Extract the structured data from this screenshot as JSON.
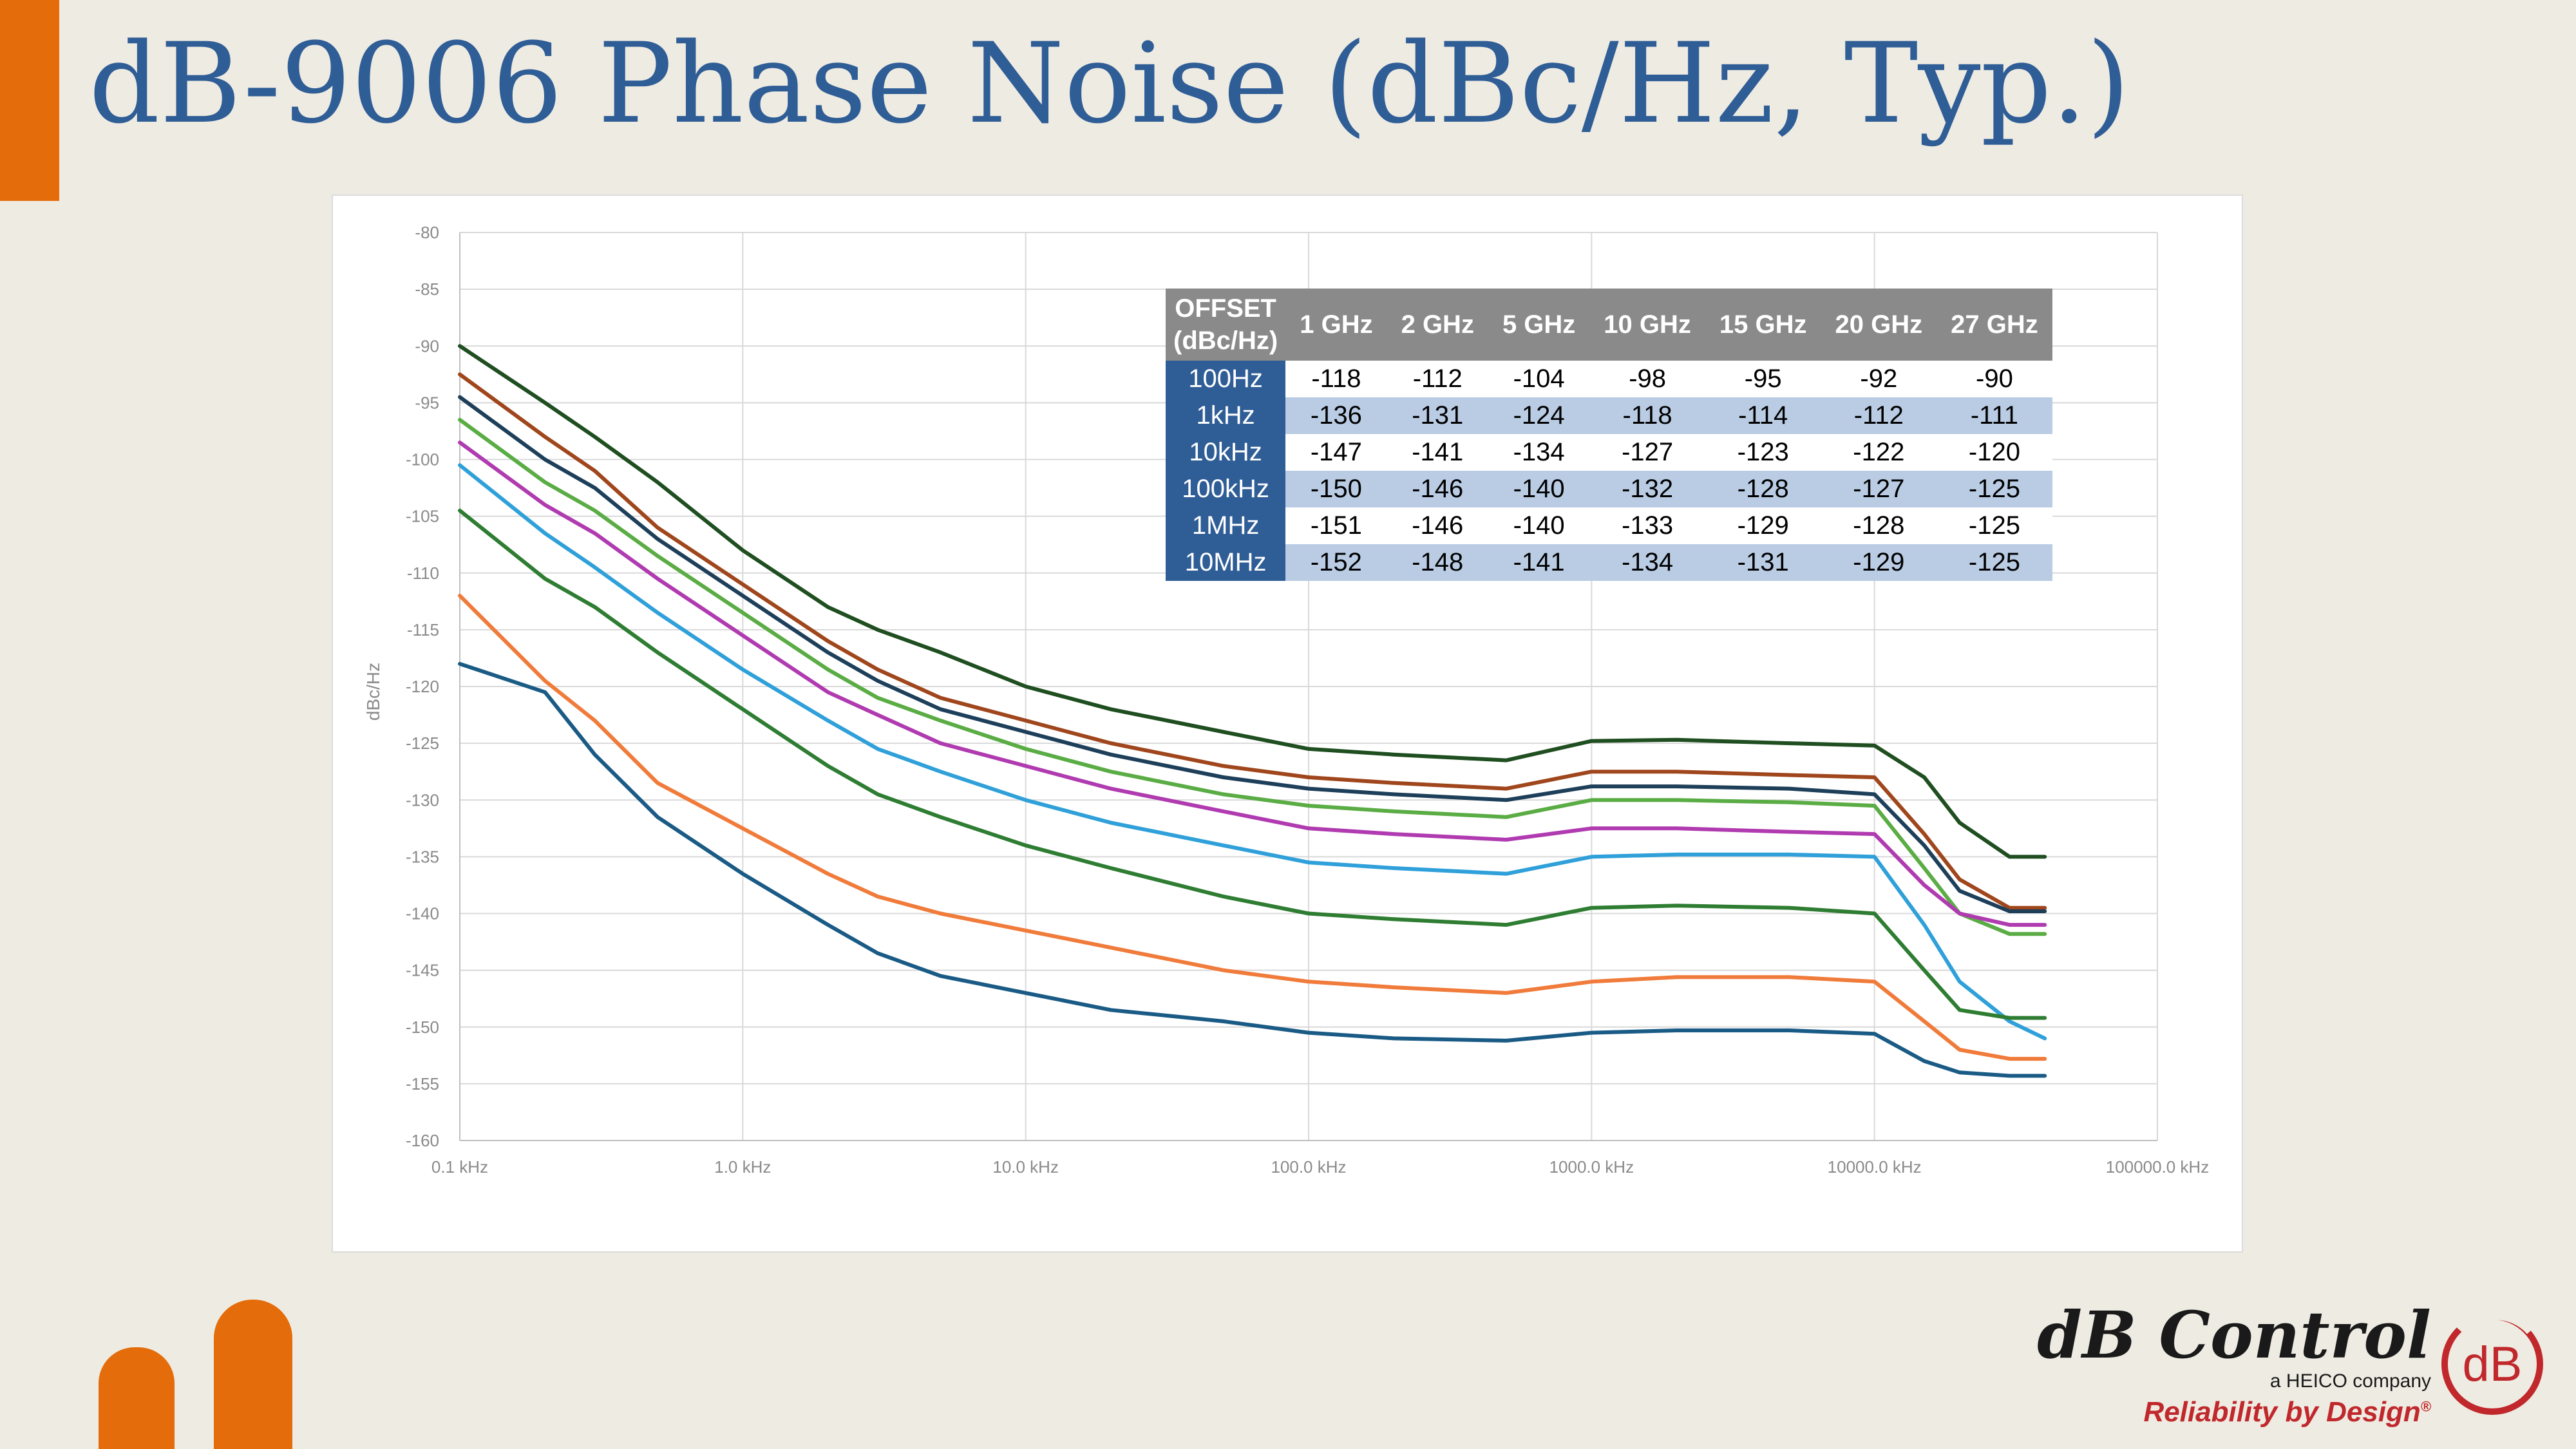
{
  "title": "dB-9006 Phase Noise (dBc/Hz, Typ.)",
  "colors": {
    "accent": "#e46c0a",
    "title": "#2f5d96",
    "table_header": "#8a8a8a",
    "table_offset": "#2f5d96",
    "table_alt_row": "#b9cce4",
    "logo_red": "#c0282c"
  },
  "chart_data": {
    "type": "line",
    "x_scale": "log",
    "xlim": [
      0.1,
      100000.0
    ],
    "ylim": [
      -160,
      -80
    ],
    "ylabel": "dBc/Hz",
    "xlabel": "",
    "grid": true,
    "x_ticks": [
      {
        "value": 0.1,
        "label": "0.1 kHz"
      },
      {
        "value": 1,
        "label": "1.0 kHz"
      },
      {
        "value": 10,
        "label": "10.0 kHz"
      },
      {
        "value": 100,
        "label": "100.0 kHz"
      },
      {
        "value": 1000,
        "label": "1000.0 kHz"
      },
      {
        "value": 10000,
        "label": "10000.0 kHz"
      },
      {
        "value": 100000,
        "label": "100000.0 kHz"
      }
    ],
    "y_ticks": [
      {
        "value": -80,
        "label": "-80"
      },
      {
        "value": -85,
        "label": "-85"
      },
      {
        "value": -90,
        "label": "-90"
      },
      {
        "value": -95,
        "label": "-95"
      },
      {
        "value": -100,
        "label": "-100"
      },
      {
        "value": -105,
        "label": "-105"
      },
      {
        "value": -110,
        "label": "-110"
      },
      {
        "value": -115,
        "label": "-115"
      },
      {
        "value": -120,
        "label": "-120"
      },
      {
        "value": -125,
        "label": "-125"
      },
      {
        "value": -130,
        "label": "-130"
      },
      {
        "value": -135,
        "label": "-135"
      },
      {
        "value": -140,
        "label": "-140"
      },
      {
        "value": -145,
        "label": "-145"
      },
      {
        "value": -150,
        "label": "-150"
      },
      {
        "value": -155,
        "label": "-155"
      },
      {
        "value": -160,
        "label": "-160"
      }
    ],
    "series": [
      {
        "color": "#1f4e20",
        "x": [
          0.1,
          0.2,
          0.3,
          0.5,
          1,
          2,
          3,
          5,
          10,
          20,
          50,
          100,
          200,
          500,
          1000,
          2000,
          5000,
          10000,
          15000,
          20000,
          30000,
          40000
        ],
        "y": [
          -90,
          -95,
          -98,
          -102,
          -108,
          -113,
          -115,
          -117,
          -120,
          -122,
          -124,
          -125.5,
          -126,
          -126.5,
          -124.8,
          -124.7,
          -125,
          -125.2,
          -128,
          -132,
          -135,
          -135
        ]
      },
      {
        "color": "#a0461c",
        "x": [
          0.1,
          0.2,
          0.3,
          0.5,
          1,
          2,
          3,
          5,
          10,
          20,
          50,
          100,
          200,
          500,
          1000,
          2000,
          5000,
          10000,
          15000,
          20000,
          30000,
          40000
        ],
        "y": [
          -92.5,
          -98,
          -101,
          -106,
          -111,
          -116,
          -118.5,
          -121,
          -123,
          -125,
          -127,
          -128,
          -128.5,
          -129,
          -127.5,
          -127.5,
          -127.8,
          -128,
          -133,
          -137,
          -139.5,
          -139.5
        ]
      },
      {
        "color": "#1e3f5a",
        "x": [
          0.1,
          0.2,
          0.3,
          0.5,
          1,
          2,
          3,
          5,
          10,
          20,
          50,
          100,
          200,
          500,
          1000,
          2000,
          5000,
          10000,
          15000,
          20000,
          30000,
          40000
        ],
        "y": [
          -94.5,
          -100,
          -102.5,
          -107,
          -112,
          -117,
          -119.5,
          -122,
          -124,
          -126,
          -128,
          -129,
          -129.5,
          -130,
          -128.8,
          -128.8,
          -129,
          -129.5,
          -134,
          -138,
          -139.8,
          -139.8
        ]
      },
      {
        "color": "#5aac44",
        "x": [
          0.1,
          0.2,
          0.3,
          0.5,
          1,
          2,
          3,
          5,
          10,
          20,
          50,
          100,
          200,
          500,
          1000,
          2000,
          5000,
          10000,
          15000,
          20000,
          30000,
          40000
        ],
        "y": [
          -96.5,
          -102,
          -104.5,
          -108.5,
          -113.5,
          -118.5,
          -121,
          -123,
          -125.5,
          -127.5,
          -129.5,
          -130.5,
          -131,
          -131.5,
          -130,
          -130,
          -130.2,
          -130.5,
          -136,
          -140,
          -141.8,
          -141.8
        ]
      },
      {
        "color": "#b03bb0",
        "x": [
          0.1,
          0.2,
          0.3,
          0.5,
          1,
          2,
          3,
          5,
          10,
          20,
          50,
          100,
          200,
          500,
          1000,
          2000,
          5000,
          10000,
          15000,
          20000,
          30000,
          40000
        ],
        "y": [
          -98.5,
          -104,
          -106.5,
          -110.5,
          -115.5,
          -120.5,
          -122.5,
          -125,
          -127,
          -129,
          -131,
          -132.5,
          -133,
          -133.5,
          -132.5,
          -132.5,
          -132.8,
          -133,
          -137.5,
          -140,
          -141,
          -141
        ]
      },
      {
        "color": "#2fa0d9",
        "x": [
          0.1,
          0.2,
          0.3,
          0.5,
          1,
          2,
          3,
          5,
          10,
          20,
          50,
          100,
          200,
          500,
          1000,
          2000,
          5000,
          10000,
          15000,
          20000,
          30000,
          40000
        ],
        "y": [
          -100.5,
          -106.5,
          -109.5,
          -113.5,
          -118.5,
          -123,
          -125.5,
          -127.5,
          -130,
          -132,
          -134,
          -135.5,
          -136,
          -136.5,
          -135,
          -134.8,
          -134.8,
          -135,
          -141,
          -146,
          -149.5,
          -151
        ]
      },
      {
        "color": "#2e7d32",
        "x": [
          0.1,
          0.2,
          0.3,
          0.5,
          1,
          2,
          3,
          5,
          10,
          20,
          50,
          100,
          200,
          500,
          1000,
          2000,
          5000,
          10000,
          15000,
          20000,
          30000,
          40000
        ],
        "y": [
          -104.5,
          -110.5,
          -113,
          -117,
          -122,
          -127,
          -129.5,
          -131.5,
          -134,
          -136,
          -138.5,
          -140,
          -140.5,
          -141,
          -139.5,
          -139.3,
          -139.5,
          -140,
          -145,
          -148.5,
          -149.2,
          -149.2
        ]
      },
      {
        "color": "#f07b3a",
        "x": [
          0.1,
          0.2,
          0.3,
          0.5,
          1,
          2,
          3,
          5,
          10,
          20,
          50,
          100,
          200,
          500,
          1000,
          2000,
          5000,
          10000,
          15000,
          20000,
          30000,
          40000
        ],
        "y": [
          -112,
          -119.5,
          -123,
          -128.5,
          -132.5,
          -136.5,
          -138.5,
          -140,
          -141.5,
          -143,
          -145,
          -146,
          -146.5,
          -147,
          -146,
          -145.6,
          -145.6,
          -146,
          -149.5,
          -152,
          -152.8,
          -152.8
        ]
      },
      {
        "color": "#1a5b86",
        "x": [
          0.1,
          0.2,
          0.3,
          0.5,
          1,
          2,
          3,
          5,
          10,
          20,
          50,
          100,
          200,
          500,
          1000,
          2000,
          5000,
          10000,
          15000,
          20000,
          30000,
          40000
        ],
        "y": [
          -118,
          -120.5,
          -126,
          -131.5,
          -136.5,
          -141,
          -143.5,
          -145.5,
          -147,
          -148.5,
          -149.5,
          -150.5,
          -151,
          -151.2,
          -150.5,
          -150.3,
          -150.3,
          -150.6,
          -153,
          -154,
          -154.3,
          -154.3
        ]
      }
    ]
  },
  "table": {
    "header_offset_line1": "OFFSET",
    "header_offset_line2": "(dBc/Hz)",
    "columns": [
      "1 GHz",
      "2 GHz",
      "5 GHz",
      "10 GHz",
      "15 GHz",
      "20 GHz",
      "27 GHz"
    ],
    "rows": [
      {
        "offset": "100Hz",
        "values": [
          "-118",
          "-112",
          "-104",
          "-98",
          "-95",
          "-92",
          "-90"
        ]
      },
      {
        "offset": "1kHz",
        "values": [
          "-136",
          "-131",
          "-124",
          "-118",
          "-114",
          "-112",
          "-111"
        ]
      },
      {
        "offset": "10kHz",
        "values": [
          "-147",
          "-141",
          "-134",
          "-127",
          "-123",
          "-122",
          "-120"
        ]
      },
      {
        "offset": "100kHz",
        "values": [
          "-150",
          "-146",
          "-140",
          "-132",
          "-128",
          "-127",
          "-125"
        ]
      },
      {
        "offset": "1MHz",
        "values": [
          "-151",
          "-146",
          "-140",
          "-133",
          "-129",
          "-128",
          "-125"
        ]
      },
      {
        "offset": "10MHz",
        "values": [
          "-152",
          "-148",
          "-141",
          "-134",
          "-131",
          "-129",
          "-125"
        ]
      }
    ]
  },
  "logo": {
    "name": "dB Control",
    "subtitle": "a HEICO company",
    "tagline": "Reliability by Design",
    "registered_mark": "®",
    "mark_text": "dB"
  }
}
